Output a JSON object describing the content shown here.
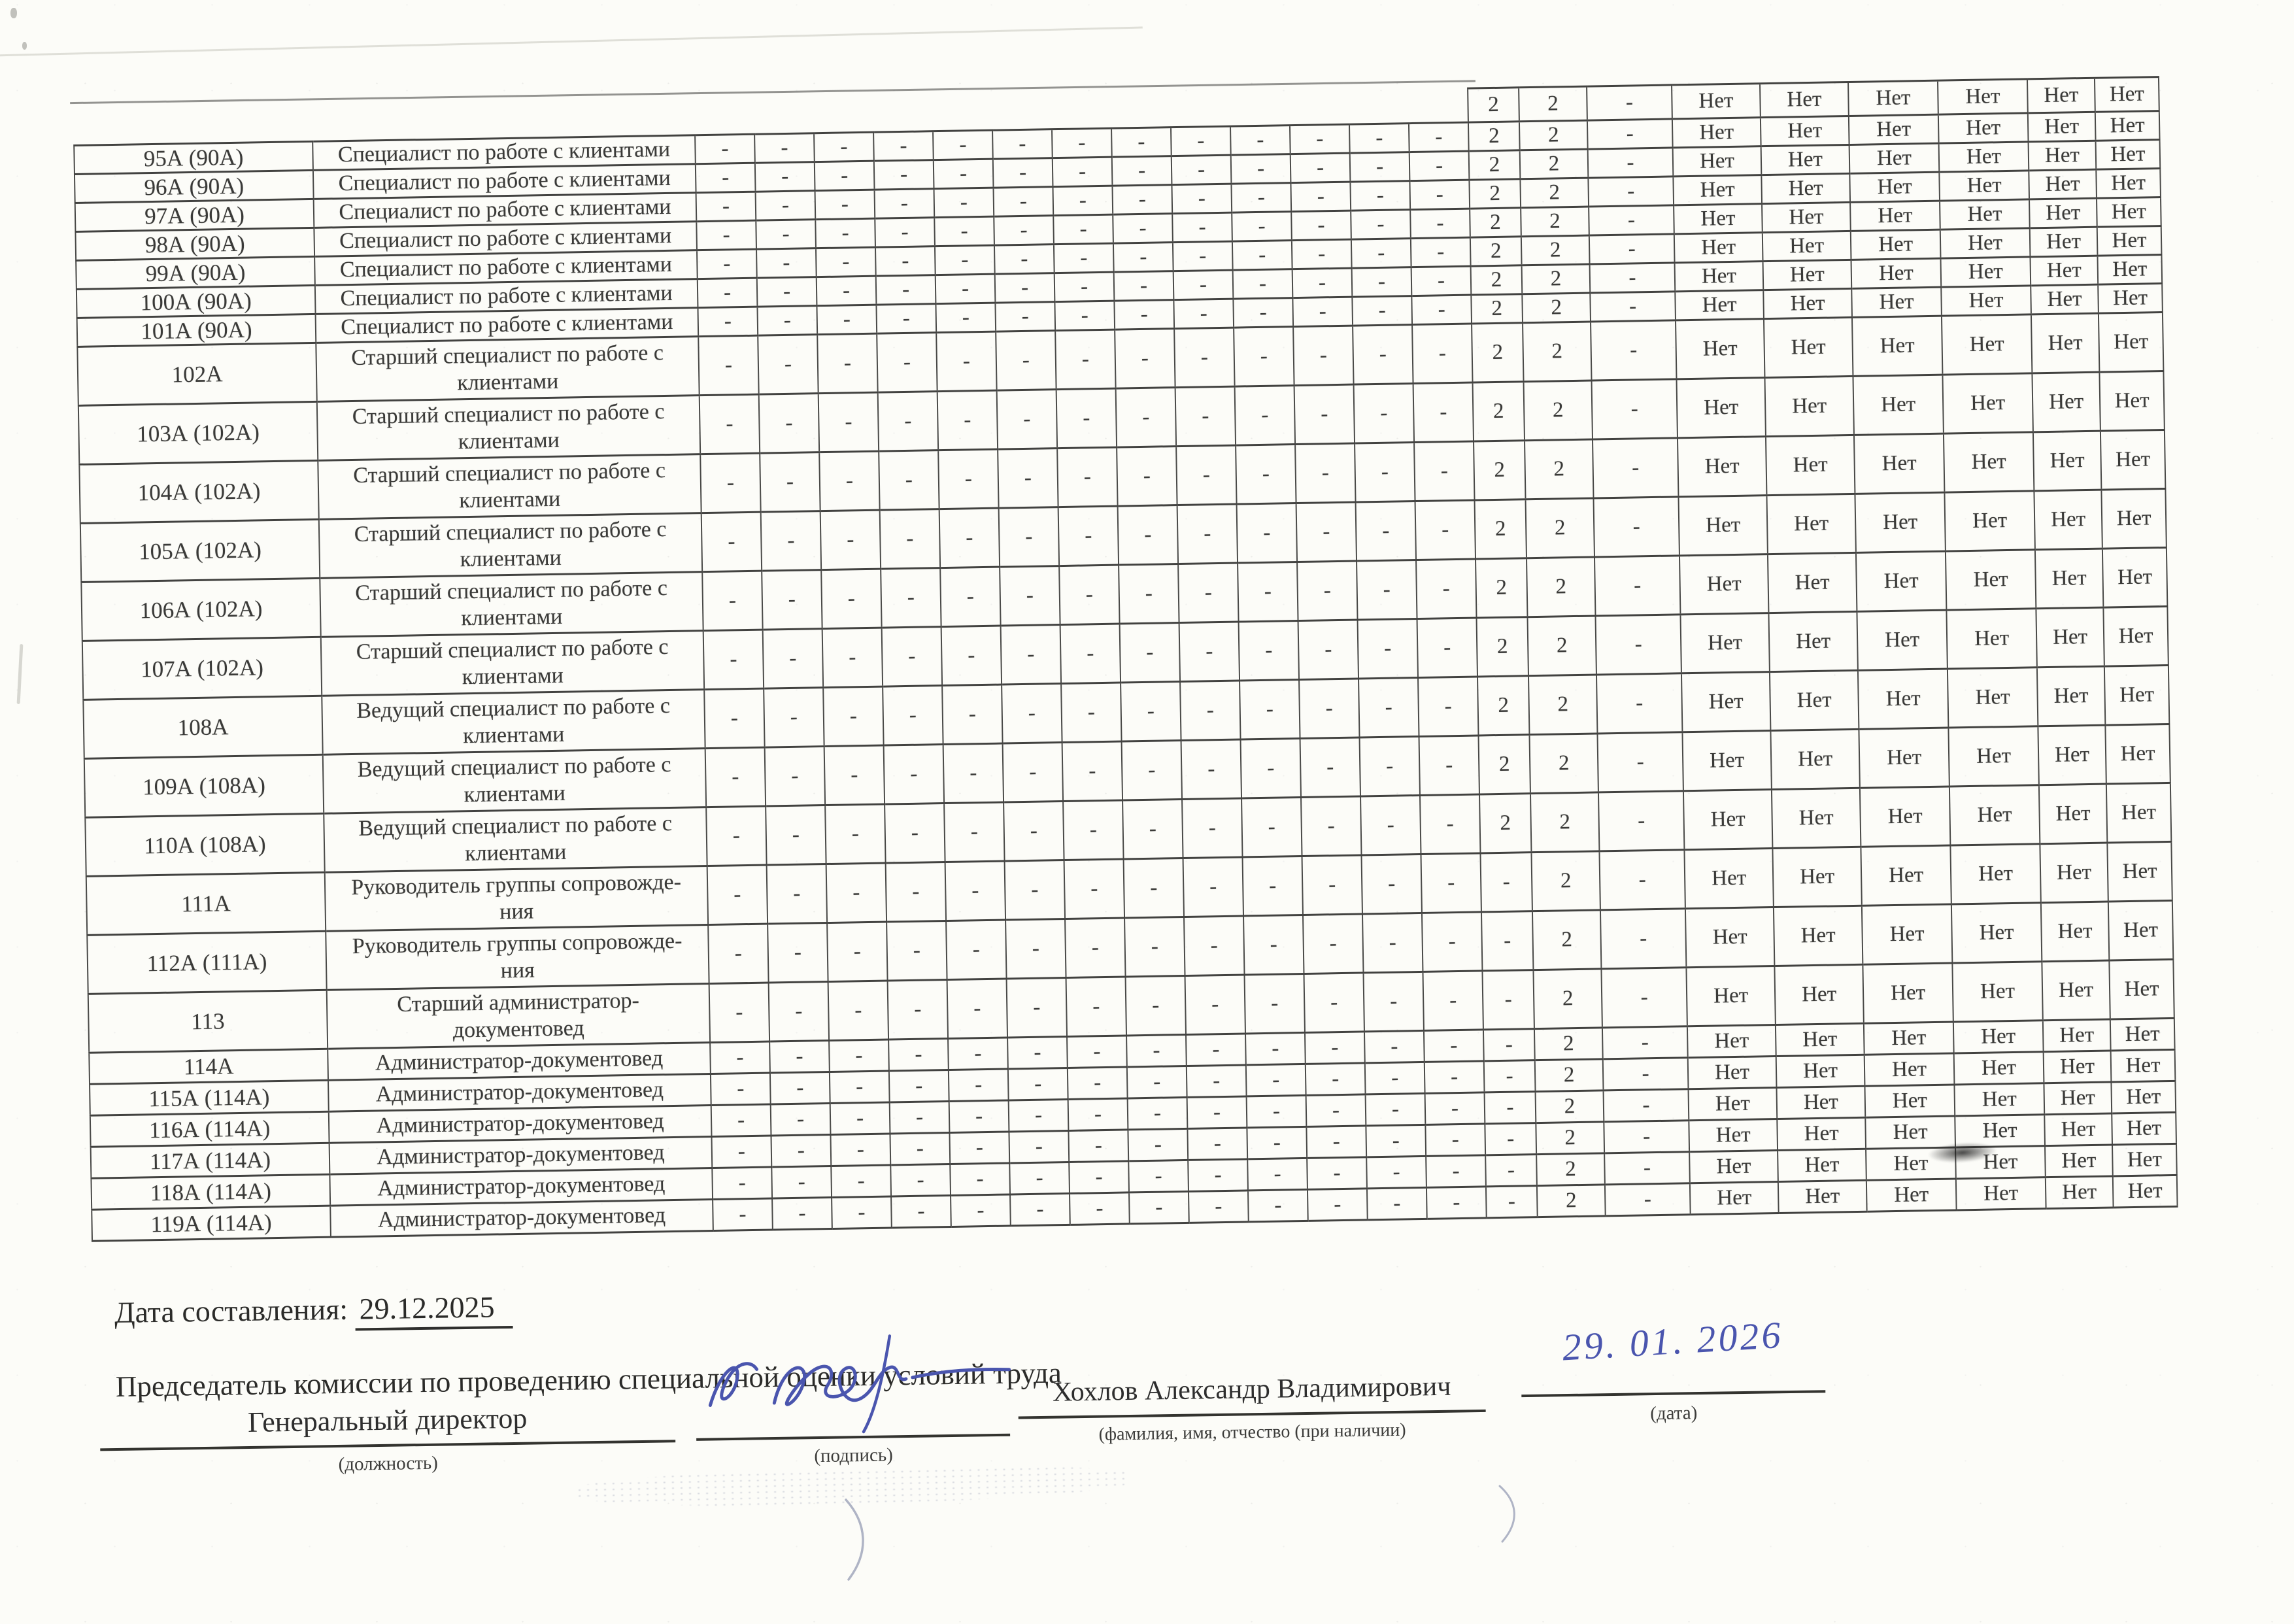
{
  "page": {
    "date_label": "Дата составления:",
    "date_value": "29.12.2025",
    "chairman_title": "Председатель комиссии по проведению специальной оценки условий труда",
    "ink_color": "#4a55ae",
    "border_color": "#424240",
    "signature_block": {
      "position": "Генеральный директор",
      "position_caption": "(должность)",
      "signature_caption": "(подпись)",
      "name": "Хохлов Александр Владимирович",
      "name_caption": "(фамилия, имя, отчество (при наличии)",
      "handwritten_date": "29. 01. 2026",
      "date_caption": "(дата)"
    }
  },
  "table": {
    "partial_top_row": {
      "factors_visible": [
        "2",
        "2",
        "-"
      ],
      "guarantees": [
        "Нет",
        "Нет",
        "Нет",
        "Нет",
        "Нет",
        "Нет"
      ]
    },
    "rows": [
      {
        "num": "95А (90А)",
        "title": "Специалист по работе с клиентами",
        "factors": [
          "-",
          "-",
          "-",
          "-",
          "-",
          "-",
          "-",
          "-",
          "-",
          "-",
          "-",
          "-",
          "-",
          "2",
          "2",
          "-"
        ],
        "guarantees": [
          "Нет",
          "Нет",
          "Нет",
          "Нет",
          "Нет",
          "Нет"
        ]
      },
      {
        "num": "96А (90А)",
        "title": "Специалист по работе с клиентами",
        "factors": [
          "-",
          "-",
          "-",
          "-",
          "-",
          "-",
          "-",
          "-",
          "-",
          "-",
          "-",
          "-",
          "-",
          "2",
          "2",
          "-"
        ],
        "guarantees": [
          "Нет",
          "Нет",
          "Нет",
          "Нет",
          "Нет",
          "Нет"
        ]
      },
      {
        "num": "97А (90А)",
        "title": "Специалист по работе с клиентами",
        "factors": [
          "-",
          "-",
          "-",
          "-",
          "-",
          "-",
          "-",
          "-",
          "-",
          "-",
          "-",
          "-",
          "-",
          "2",
          "2",
          "-"
        ],
        "guarantees": [
          "Нет",
          "Нет",
          "Нет",
          "Нет",
          "Нет",
          "Нет"
        ]
      },
      {
        "num": "98А (90А)",
        "title": "Специалист по работе с клиентами",
        "factors": [
          "-",
          "-",
          "-",
          "-",
          "-",
          "-",
          "-",
          "-",
          "-",
          "-",
          "-",
          "-",
          "-",
          "2",
          "2",
          "-"
        ],
        "guarantees": [
          "Нет",
          "Нет",
          "Нет",
          "Нет",
          "Нет",
          "Нет"
        ]
      },
      {
        "num": "99А (90А)",
        "title": "Специалист по работе с клиентами",
        "factors": [
          "-",
          "-",
          "-",
          "-",
          "-",
          "-",
          "-",
          "-",
          "-",
          "-",
          "-",
          "-",
          "-",
          "2",
          "2",
          "-"
        ],
        "guarantees": [
          "Нет",
          "Нет",
          "Нет",
          "Нет",
          "Нет",
          "Нет"
        ]
      },
      {
        "num": "100А (90А)",
        "title": "Специалист по работе с клиентами",
        "factors": [
          "-",
          "-",
          "-",
          "-",
          "-",
          "-",
          "-",
          "-",
          "-",
          "-",
          "-",
          "-",
          "-",
          "2",
          "2",
          "-"
        ],
        "guarantees": [
          "Нет",
          "Нет",
          "Нет",
          "Нет",
          "Нет",
          "Нет"
        ]
      },
      {
        "num": "101А (90А)",
        "title": "Специалист по работе с клиентами",
        "factors": [
          "-",
          "-",
          "-",
          "-",
          "-",
          "-",
          "-",
          "-",
          "-",
          "-",
          "-",
          "-",
          "-",
          "2",
          "2",
          "-"
        ],
        "guarantees": [
          "Нет",
          "Нет",
          "Нет",
          "Нет",
          "Нет",
          "Нет"
        ]
      },
      {
        "num": "102А",
        "title": "Старший специалист по работе с\nклиентами",
        "factors": [
          "-",
          "-",
          "-",
          "-",
          "-",
          "-",
          "-",
          "-",
          "-",
          "-",
          "-",
          "-",
          "-",
          "2",
          "2",
          "-"
        ],
        "guarantees": [
          "Нет",
          "Нет",
          "Нет",
          "Нет",
          "Нет",
          "Нет"
        ]
      },
      {
        "num": "103А (102А)",
        "title": "Старший специалист по работе с\nклиентами",
        "factors": [
          "-",
          "-",
          "-",
          "-",
          "-",
          "-",
          "-",
          "-",
          "-",
          "-",
          "-",
          "-",
          "-",
          "2",
          "2",
          "-"
        ],
        "guarantees": [
          "Нет",
          "Нет",
          "Нет",
          "Нет",
          "Нет",
          "Нет"
        ]
      },
      {
        "num": "104А (102А)",
        "title": "Старший специалист по работе с\nклиентами",
        "factors": [
          "-",
          "-",
          "-",
          "-",
          "-",
          "-",
          "-",
          "-",
          "-",
          "-",
          "-",
          "-",
          "-",
          "2",
          "2",
          "-"
        ],
        "guarantees": [
          "Нет",
          "Нет",
          "Нет",
          "Нет",
          "Нет",
          "Нет"
        ]
      },
      {
        "num": "105А (102А)",
        "title": "Старший специалист по работе с\nклиентами",
        "factors": [
          "-",
          "-",
          "-",
          "-",
          "-",
          "-",
          "-",
          "-",
          "-",
          "-",
          "-",
          "-",
          "-",
          "2",
          "2",
          "-"
        ],
        "guarantees": [
          "Нет",
          "Нет",
          "Нет",
          "Нет",
          "Нет",
          "Нет"
        ]
      },
      {
        "num": "106А (102А)",
        "title": "Старший специалист по работе с\nклиентами",
        "factors": [
          "-",
          "-",
          "-",
          "-",
          "-",
          "-",
          "-",
          "-",
          "-",
          "-",
          "-",
          "-",
          "-",
          "2",
          "2",
          "-"
        ],
        "guarantees": [
          "Нет",
          "Нет",
          "Нет",
          "Нет",
          "Нет",
          "Нет"
        ]
      },
      {
        "num": "107А (102А)",
        "title": "Старший специалист по работе с\nклиентами",
        "factors": [
          "-",
          "-",
          "-",
          "-",
          "-",
          "-",
          "-",
          "-",
          "-",
          "-",
          "-",
          "-",
          "-",
          "2",
          "2",
          "-"
        ],
        "guarantees": [
          "Нет",
          "Нет",
          "Нет",
          "Нет",
          "Нет",
          "Нет"
        ]
      },
      {
        "num": "108А",
        "title": "Ведущий специалист по работе с\nклиентами",
        "factors": [
          "-",
          "-",
          "-",
          "-",
          "-",
          "-",
          "-",
          "-",
          "-",
          "-",
          "-",
          "-",
          "-",
          "2",
          "2",
          "-"
        ],
        "guarantees": [
          "Нет",
          "Нет",
          "Нет",
          "Нет",
          "Нет",
          "Нет"
        ]
      },
      {
        "num": "109А (108А)",
        "title": "Ведущий специалист по работе с\nклиентами",
        "factors": [
          "-",
          "-",
          "-",
          "-",
          "-",
          "-",
          "-",
          "-",
          "-",
          "-",
          "-",
          "-",
          "-",
          "2",
          "2",
          "-"
        ],
        "guarantees": [
          "Нет",
          "Нет",
          "Нет",
          "Нет",
          "Нет",
          "Нет"
        ]
      },
      {
        "num": "110А (108А)",
        "title": "Ведущий специалист по работе с\nклиентами",
        "factors": [
          "-",
          "-",
          "-",
          "-",
          "-",
          "-",
          "-",
          "-",
          "-",
          "-",
          "-",
          "-",
          "-",
          "2",
          "2",
          "-"
        ],
        "guarantees": [
          "Нет",
          "Нет",
          "Нет",
          "Нет",
          "Нет",
          "Нет"
        ]
      },
      {
        "num": "111А",
        "title": "Руководитель группы сопровожде-\nния",
        "factors": [
          "-",
          "-",
          "-",
          "-",
          "-",
          "-",
          "-",
          "-",
          "-",
          "-",
          "-",
          "-",
          "-",
          "-",
          "2",
          "-"
        ],
        "guarantees": [
          "Нет",
          "Нет",
          "Нет",
          "Нет",
          "Нет",
          "Нет"
        ]
      },
      {
        "num": "112А (111А)",
        "title": "Руководитель группы сопровожде-\nния",
        "factors": [
          "-",
          "-",
          "-",
          "-",
          "-",
          "-",
          "-",
          "-",
          "-",
          "-",
          "-",
          "-",
          "-",
          "-",
          "2",
          "-"
        ],
        "guarantees": [
          "Нет",
          "Нет",
          "Нет",
          "Нет",
          "Нет",
          "Нет"
        ]
      },
      {
        "num": "113",
        "title": "Старший администратор-\nдокументовед",
        "factors": [
          "-",
          "-",
          "-",
          "-",
          "-",
          "-",
          "-",
          "-",
          "-",
          "-",
          "-",
          "-",
          "-",
          "-",
          "2",
          "-"
        ],
        "guarantees": [
          "Нет",
          "Нет",
          "Нет",
          "Нет",
          "Нет",
          "Нет"
        ]
      },
      {
        "num": "114А",
        "title": "Администратор-документовед",
        "factors": [
          "-",
          "-",
          "-",
          "-",
          "-",
          "-",
          "-",
          "-",
          "-",
          "-",
          "-",
          "-",
          "-",
          "-",
          "2",
          "-"
        ],
        "guarantees": [
          "Нет",
          "Нет",
          "Нет",
          "Нет",
          "Нет",
          "Нет"
        ]
      },
      {
        "num": "115А (114А)",
        "title": "Администратор-документовед",
        "factors": [
          "-",
          "-",
          "-",
          "-",
          "-",
          "-",
          "-",
          "-",
          "-",
          "-",
          "-",
          "-",
          "-",
          "-",
          "2",
          "-"
        ],
        "guarantees": [
          "Нет",
          "Нет",
          "Нет",
          "Нет",
          "Нет",
          "Нет"
        ]
      },
      {
        "num": "116А (114А)",
        "title": "Администратор-документовед",
        "factors": [
          "-",
          "-",
          "-",
          "-",
          "-",
          "-",
          "-",
          "-",
          "-",
          "-",
          "-",
          "-",
          "-",
          "-",
          "2",
          "-"
        ],
        "guarantees": [
          "Нет",
          "Нет",
          "Нет",
          "Нет",
          "Нет",
          "Нет"
        ]
      },
      {
        "num": "117А (114А)",
        "title": "Администратор-документовед",
        "factors": [
          "-",
          "-",
          "-",
          "-",
          "-",
          "-",
          "-",
          "-",
          "-",
          "-",
          "-",
          "-",
          "-",
          "-",
          "2",
          "-"
        ],
        "guarantees": [
          "Нет",
          "Нет",
          "Нет",
          "Нет",
          "Нет",
          "Нет"
        ]
      },
      {
        "num": "118А (114А)",
        "title": "Администратор-документовед",
        "factors": [
          "-",
          "-",
          "-",
          "-",
          "-",
          "-",
          "-",
          "-",
          "-",
          "-",
          "-",
          "-",
          "-",
          "-",
          "2",
          "-"
        ],
        "guarantees": [
          "Нет",
          "Нет",
          "Нет",
          "Нет",
          "Нет",
          "Нет"
        ]
      },
      {
        "num": "119А (114А)",
        "title": "Администратор-документовед",
        "factors": [
          "-",
          "-",
          "-",
          "-",
          "-",
          "-",
          "-",
          "-",
          "-",
          "-",
          "-",
          "-",
          "-",
          "-",
          "2",
          "-"
        ],
        "guarantees": [
          "Нет",
          "Нет",
          "Нет",
          "Нет",
          "Нет",
          "Нет"
        ]
      }
    ]
  }
}
